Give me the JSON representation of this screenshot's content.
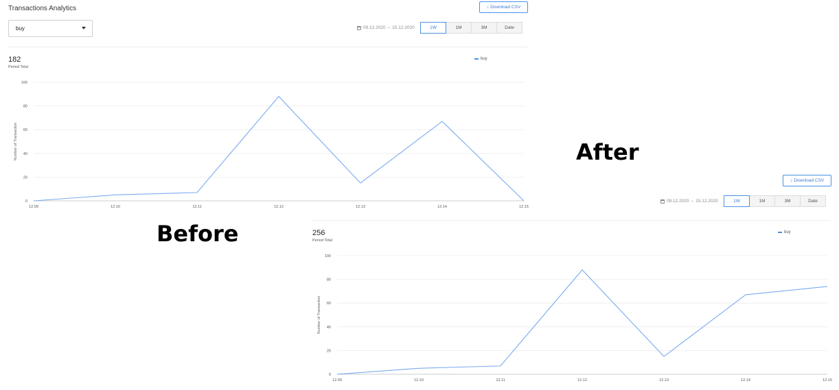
{
  "before": {
    "page_title": "Transactions Analytics",
    "select": {
      "value": "buy"
    },
    "download_label": "Download CSV",
    "date_range": {
      "start": "09.12.2020",
      "separator": "–",
      "end": "15.12.2020"
    },
    "periods": [
      "1W",
      "1M",
      "3M",
      "Date"
    ],
    "active_period": "1W",
    "total": {
      "value": "182",
      "label": "Period Total"
    },
    "legend": "buy"
  },
  "after": {
    "download_label": "Download CSV",
    "date_range": {
      "start": "09.12.2020",
      "separator": "–",
      "end": "15.12.2020"
    },
    "periods": [
      "1W",
      "1M",
      "3M",
      "Date"
    ],
    "active_period": "1W",
    "total": {
      "value": "256",
      "label": "Period Total"
    },
    "legend": "buy"
  },
  "captions": {
    "before": "Before",
    "after": "After"
  },
  "colors": {
    "accent": "#4a90e2",
    "line": "#7aaaf0",
    "grid": "#ececec"
  },
  "chart_data": [
    {
      "type": "line",
      "x": [
        "12.09",
        "12.10",
        "12.11",
        "12.12",
        "12.13",
        "12.14",
        "12.15"
      ],
      "series": [
        {
          "name": "buy",
          "values": [
            0,
            5,
            7,
            88,
            15,
            67,
            0
          ]
        }
      ],
      "ylabel": "Number of Transaction",
      "ylim": [
        0,
        100
      ],
      "yticks": [
        0,
        20,
        40,
        60,
        80,
        100
      ],
      "grid": true,
      "legend_position": "top-right"
    },
    {
      "type": "line",
      "x": [
        "12.09",
        "12.10",
        "12.11",
        "12.12",
        "12.13",
        "12.14",
        "12.15"
      ],
      "series": [
        {
          "name": "buy",
          "values": [
            0,
            5,
            7,
            88,
            15,
            67,
            74
          ]
        }
      ],
      "ylabel": "Number of Transaction",
      "ylim": [
        0,
        100
      ],
      "yticks": [
        0,
        20,
        40,
        60,
        80,
        100
      ],
      "grid": true,
      "legend_position": "top-right"
    }
  ]
}
